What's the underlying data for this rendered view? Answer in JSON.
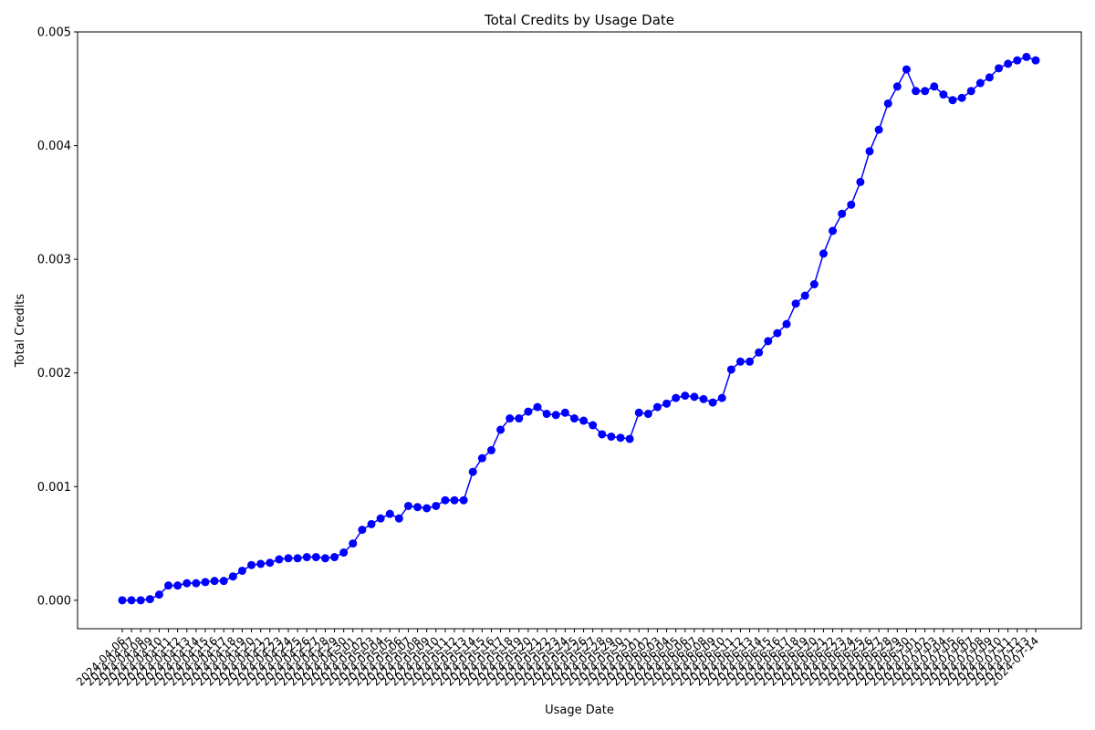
{
  "chart_data": {
    "type": "line",
    "title": "Total Credits by Usage Date",
    "xlabel": "Usage Date",
    "ylabel": "Total Credits",
    "ylim": [
      -0.00025,
      0.005
    ],
    "yticks": [
      "0.000",
      "0.001",
      "0.002",
      "0.003",
      "0.004",
      "0.005"
    ],
    "ytick_values": [
      0,
      0.001,
      0.002,
      0.003,
      0.004,
      0.005
    ],
    "grid": false,
    "color": "#0000ff",
    "marker": "circle",
    "x": [
      "2024-04-06",
      "2024-04-07",
      "2024-04-08",
      "2024-04-09",
      "2024-04-10",
      "2024-04-11",
      "2024-04-12",
      "2024-04-13",
      "2024-04-14",
      "2024-04-15",
      "2024-04-16",
      "2024-04-17",
      "2024-04-18",
      "2024-04-19",
      "2024-04-20",
      "2024-04-21",
      "2024-04-22",
      "2024-04-23",
      "2024-04-24",
      "2024-04-25",
      "2024-04-26",
      "2024-04-27",
      "2024-04-28",
      "2024-04-29",
      "2024-04-30",
      "2024-05-01",
      "2024-05-02",
      "2024-05-03",
      "2024-05-04",
      "2024-05-05",
      "2024-05-06",
      "2024-05-07",
      "2024-05-08",
      "2024-05-09",
      "2024-05-10",
      "2024-05-11",
      "2024-05-12",
      "2024-05-13",
      "2024-05-14",
      "2024-05-15",
      "2024-05-16",
      "2024-05-17",
      "2024-05-18",
      "2024-05-19",
      "2024-05-20",
      "2024-05-21",
      "2024-05-22",
      "2024-05-23",
      "2024-05-24",
      "2024-05-25",
      "2024-05-26",
      "2024-05-27",
      "2024-05-28",
      "2024-05-29",
      "2024-05-30",
      "2024-05-31",
      "2024-06-01",
      "2024-06-02",
      "2024-06-03",
      "2024-06-04",
      "2024-06-05",
      "2024-06-06",
      "2024-06-07",
      "2024-06-08",
      "2024-06-09",
      "2024-06-10",
      "2024-06-11",
      "2024-06-12",
      "2024-06-13",
      "2024-06-14",
      "2024-06-15",
      "2024-06-16",
      "2024-06-17",
      "2024-06-18",
      "2024-06-19",
      "2024-06-20",
      "2024-06-21",
      "2024-06-22",
      "2024-06-23",
      "2024-06-24",
      "2024-06-25",
      "2024-06-26",
      "2024-06-27",
      "2024-06-28",
      "2024-06-29",
      "2024-06-30",
      "2024-07-01",
      "2024-07-02",
      "2024-07-03",
      "2024-07-04",
      "2024-07-05",
      "2024-07-06",
      "2024-07-07",
      "2024-07-08",
      "2024-07-09",
      "2024-07-10",
      "2024-07-11",
      "2024-07-12",
      "2024-07-13",
      "2024-07-14"
    ],
    "y": [
      0.0,
      0.0,
      0.0,
      1e-05,
      5e-05,
      0.00013,
      0.00013,
      0.00015,
      0.00015,
      0.00016,
      0.00017,
      0.00017,
      0.00021,
      0.00026,
      0.00031,
      0.00032,
      0.00033,
      0.00036,
      0.00037,
      0.00037,
      0.00038,
      0.00038,
      0.00037,
      0.00038,
      0.00042,
      0.0005,
      0.00062,
      0.00067,
      0.00072,
      0.00076,
      0.00072,
      0.00083,
      0.00082,
      0.00081,
      0.00083,
      0.00088,
      0.00088,
      0.00088,
      0.00113,
      0.00125,
      0.00132,
      0.0015,
      0.0016,
      0.0016,
      0.00166,
      0.0017,
      0.00164,
      0.00163,
      0.00165,
      0.0016,
      0.00158,
      0.00154,
      0.00146,
      0.00144,
      0.00143,
      0.00142,
      0.00165,
      0.00164,
      0.0017,
      0.00173,
      0.00178,
      0.0018,
      0.00179,
      0.00177,
      0.00174,
      0.00178,
      0.00203,
      0.0021,
      0.0021,
      0.00218,
      0.00228,
      0.00235,
      0.00243,
      0.00261,
      0.00268,
      0.00278,
      0.00305,
      0.00325,
      0.0034,
      0.00348,
      0.00368,
      0.00395,
      0.00414,
      0.00437,
      0.00452,
      0.00467,
      0.00448,
      0.00448,
      0.00452,
      0.00445,
      0.0044,
      0.00442,
      0.00448,
      0.00455,
      0.0046,
      0.00468,
      0.00472,
      0.00475,
      0.00478,
      0.00475
    ]
  }
}
